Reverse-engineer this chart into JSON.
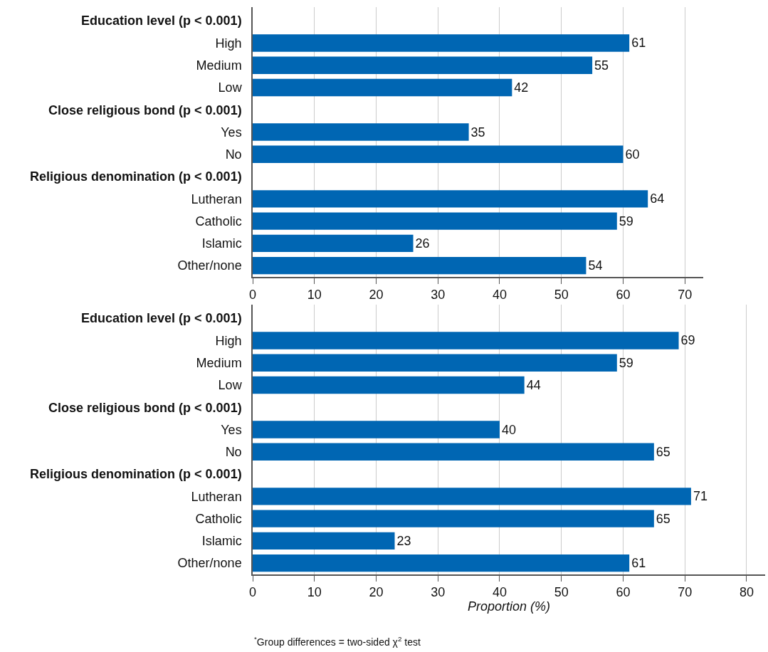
{
  "chart_data": [
    {
      "type": "bar",
      "orientation": "horizontal",
      "categories": [
        "Education level (p < 0.001)",
        "High",
        "Medium",
        "Low",
        "Close religious bond (p < 0.001)",
        "Yes",
        "No",
        "Religious denomination (p < 0.001)",
        "Lutheran",
        "Catholic",
        "Islamic",
        "Other/none"
      ],
      "values": [
        null,
        61,
        55,
        42,
        null,
        35,
        60,
        null,
        64,
        59,
        26,
        54
      ],
      "color": "#0066b3",
      "data_labels": true,
      "xlim": [
        0,
        73
      ],
      "xticks": [
        0,
        10,
        20,
        30,
        40,
        50,
        60,
        70
      ],
      "grid": "x"
    },
    {
      "type": "bar",
      "orientation": "horizontal",
      "categories": [
        "Education level (p < 0.001)",
        "High",
        "Medium",
        "Low",
        "Close religious bond (p < 0.001)",
        "Yes",
        "No",
        "Religious denomination (p < 0.001)",
        "Lutheran",
        "Catholic",
        "Islamic",
        "Other/none"
      ],
      "values": [
        null,
        69,
        59,
        44,
        null,
        40,
        65,
        null,
        71,
        65,
        23,
        61
      ],
      "color": "#0066b3",
      "data_labels": true,
      "xlim": [
        0,
        83
      ],
      "xticks": [
        0,
        10,
        20,
        30,
        40,
        50,
        60,
        70,
        80
      ],
      "xlabel": "Proportion (%)",
      "grid": "x",
      "annotations": [
        "$^{*}$Group differences = two-sided χ$^{2}$ test"
      ]
    }
  ]
}
